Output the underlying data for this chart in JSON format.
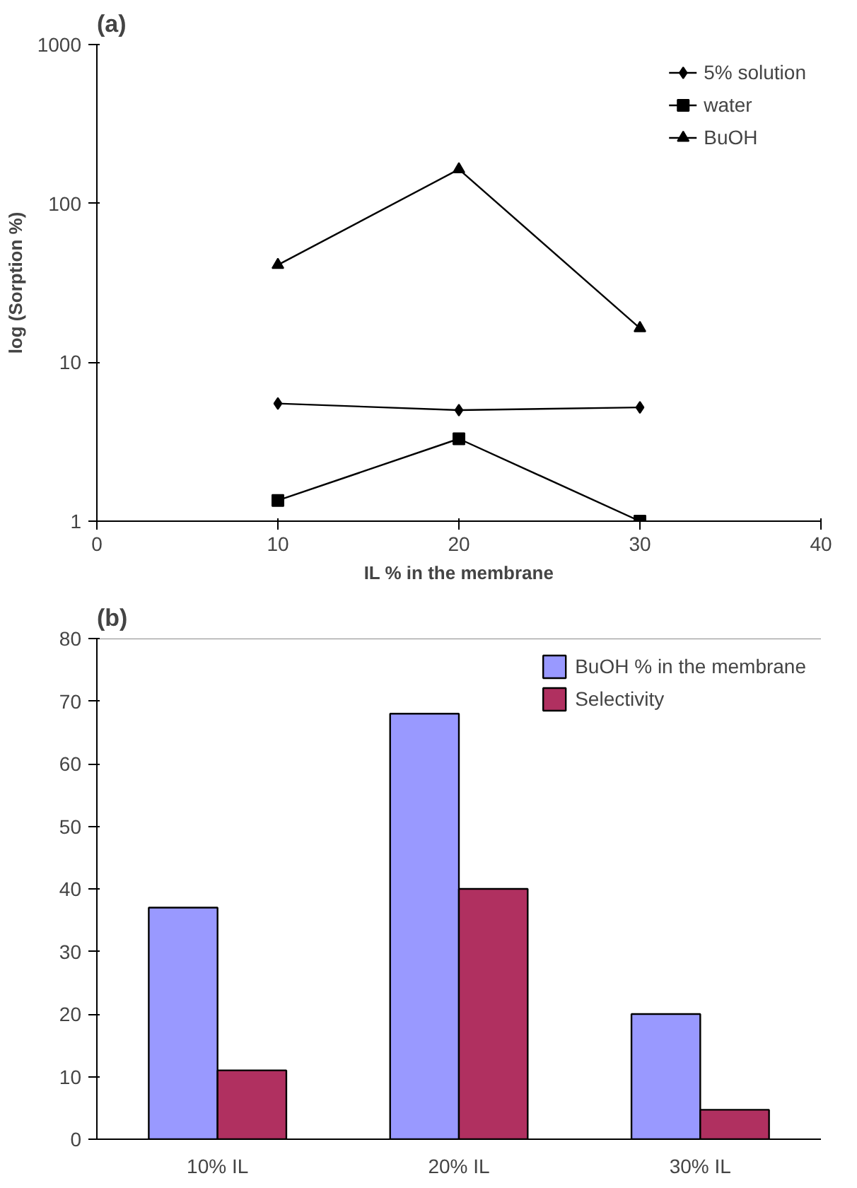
{
  "chart_data": [
    {
      "type": "line",
      "title": "(a)",
      "xlabel": "IL % in the membrane",
      "ylabel": "log (Sorption %)",
      "log": "y",
      "x": [
        10,
        20,
        30
      ],
      "xlim": [
        0,
        40
      ],
      "xticks": [
        0,
        10,
        20,
        30,
        40
      ],
      "ylim": [
        1,
        1000
      ],
      "yticks": [
        1,
        10,
        100,
        1000
      ],
      "grid": false,
      "legend": "top right",
      "line_style": "solid",
      "series": [
        {
          "name": "5% solution",
          "color": "#000000",
          "marker": "diamond",
          "values": [
            5.5,
            5.0,
            5.2
          ]
        },
        {
          "name": "water",
          "color": "#000000",
          "marker": "square",
          "values": [
            1.35,
            3.3,
            1.0
          ]
        },
        {
          "name": "BuOH",
          "color": "#000000",
          "marker": "triangle",
          "values": [
            41,
            164,
            16.4
          ]
        }
      ]
    },
    {
      "type": "bar",
      "title": "(b)",
      "categories": [
        "10% IL",
        "20% IL",
        "30% IL"
      ],
      "ylim": [
        0,
        80
      ],
      "yticks": [
        0,
        10,
        20,
        30,
        40,
        50,
        60,
        70,
        80
      ],
      "grid": false,
      "legend": "top right",
      "series": [
        {
          "name": "BuOH % in the membrane",
          "color": "#9999ff",
          "values": [
            37,
            68,
            20
          ]
        },
        {
          "name": "Selectivity",
          "color": "#b03060",
          "values": [
            11,
            40,
            4.7
          ]
        }
      ]
    }
  ]
}
